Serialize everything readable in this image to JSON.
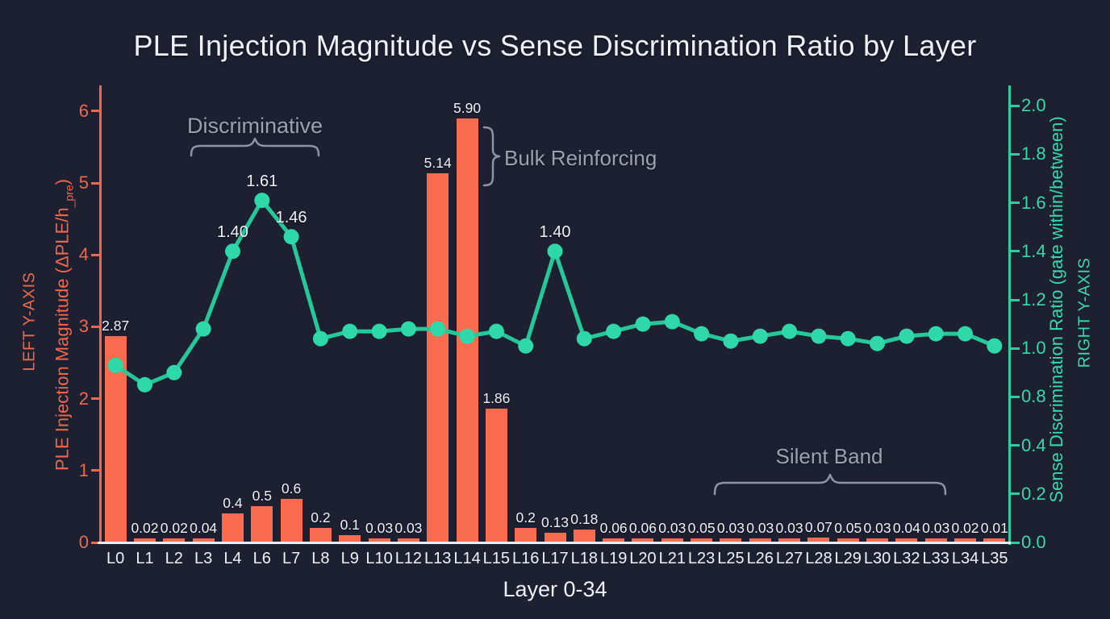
{
  "title": "PLE Injection Magnitude vs Sense Discrimination Ratio by Layer",
  "colors": {
    "background": "#1d2031",
    "bar": "#fa6c4f",
    "left": "#f0684c",
    "rightaxis": "#2bd0a2",
    "righttext": "#38d8ab",
    "line": "#26c89a",
    "dot": "#2fd8a8",
    "text": "#eef1f6",
    "annotation": "#9aa2af",
    "baseline": "#e9ecf2"
  },
  "left_axis": {
    "caps_label": "LEFT Y-AXIS",
    "title_pre": "PLE Injection Magnitude (ΔPLE/h",
    "title_sub": "_pre",
    "title_post": ")",
    "tick_labels": [
      "0",
      "1",
      "2",
      "3",
      "4",
      "5",
      "6"
    ]
  },
  "right_axis": {
    "caps_label": "RIGHT Y-AXIS",
    "title": "Sense Discrimination Ratio (gate within/between)",
    "tick_labels": [
      "0.0",
      "0.2",
      "0.4",
      "0.8",
      "1.0",
      "1.2",
      "1.4",
      "1.6",
      "1.8",
      "2.0"
    ]
  },
  "x_axis": {
    "title": "Layer 0-34"
  },
  "annotations": {
    "discriminative": "Discriminative",
    "bulk": "Bulk Reinforcing",
    "silent": "Silent Band"
  },
  "chart_data": {
    "type": "combo: bar (left axis) + line (right axis)",
    "categories": [
      "L0",
      "L1",
      "L2",
      "L3",
      "L4",
      "L6",
      "L7",
      "L8",
      "L9",
      "L10",
      "L12",
      "L13",
      "L14",
      "L15",
      "L16",
      "L17",
      "L18",
      "L19",
      "L20",
      "L21",
      "L23",
      "L25",
      "L26",
      "L27",
      "L28",
      "L29",
      "L30",
      "L32",
      "L33",
      "L34",
      "L35"
    ],
    "series": [
      {
        "name": "PLE Injection Magnitude",
        "type": "bar",
        "axis": "left",
        "values": [
          2.87,
          0.02,
          0.02,
          0.04,
          0.4,
          0.5,
          0.6,
          0.2,
          0.1,
          0.03,
          0.03,
          5.14,
          5.9,
          1.86,
          0.2,
          0.13,
          0.18,
          0.06,
          0.06,
          0.03,
          0.05,
          0.03,
          0.03,
          0.03,
          0.07,
          0.05,
          0.03,
          0.04,
          0.03,
          0.02,
          0.01
        ],
        "labels": [
          "2.87",
          "0.02",
          "0.02",
          "0.04",
          "0.4",
          "0.5",
          "0.6",
          "0.2",
          "0.1",
          "0.03",
          "0.03",
          "5.14",
          "5.90",
          "1.86",
          "0.2",
          "0.13",
          "0.18",
          "0.06",
          "0.06",
          "0.03",
          "0.05",
          "0.03",
          "0.03",
          "0.03",
          "0.07",
          "0.05",
          "0.03",
          "0.04",
          "0.03",
          "0.02",
          "0.01"
        ]
      },
      {
        "name": "Sense Discrimination Ratio",
        "type": "line",
        "axis": "right",
        "values": [
          0.93,
          0.85,
          0.9,
          1.08,
          1.4,
          1.61,
          1.46,
          1.04,
          1.07,
          1.07,
          1.08,
          1.08,
          1.05,
          1.07,
          1.01,
          1.4,
          1.04,
          1.07,
          1.1,
          1.11,
          1.06,
          1.03,
          1.05,
          1.07,
          1.05,
          1.04,
          1.02,
          1.05,
          1.06,
          1.06,
          1.01
        ],
        "point_labels": {
          "4": "1.40",
          "5": "1.61",
          "6": "1.46",
          "15": "1.40"
        }
      }
    ],
    "left_ylim": [
      0,
      6
    ],
    "right_ylim": [
      0,
      2
    ],
    "grid": false,
    "legend": "none"
  }
}
